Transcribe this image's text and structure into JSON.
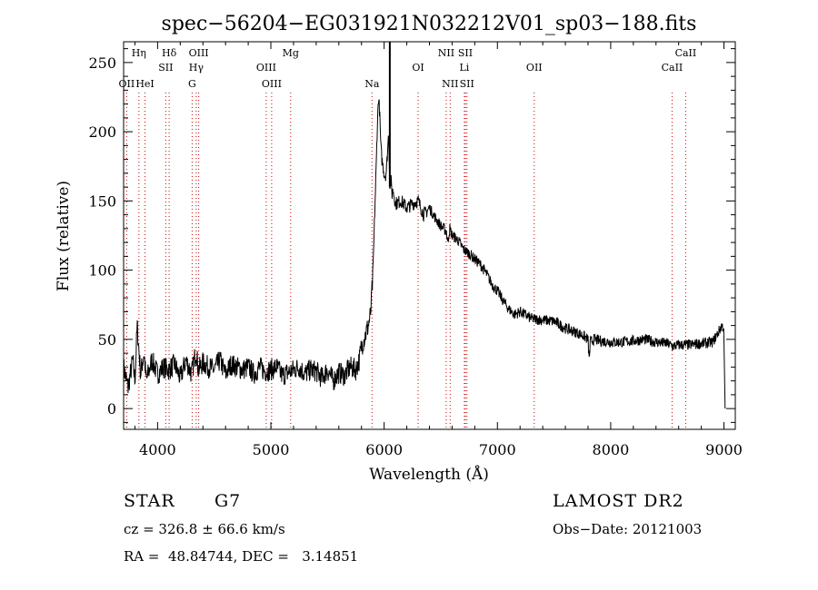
{
  "chart_data": {
    "type": "line",
    "title": "spec−56204−EG031921N032212V01_sp03−188.fits",
    "xlabel": "Wavelength (Å)",
    "ylabel": "Flux (relative)",
    "xlim": [
      3700,
      9100
    ],
    "ylim": [
      -15,
      265
    ],
    "xticks": [
      4000,
      5000,
      6000,
      7000,
      8000,
      9000
    ],
    "yticks": [
      0,
      50,
      100,
      150,
      200,
      250
    ],
    "grid": false,
    "series": [
      {
        "x": [
          3700,
          3740,
          3780,
          3800,
          3820,
          3850,
          3880,
          3900,
          3950,
          4000,
          4050,
          4100,
          4150,
          4200,
          4250,
          4300,
          4340,
          4360,
          4400,
          4450,
          4500,
          4550,
          4600,
          4650,
          4700,
          4750,
          4800,
          4850,
          4900,
          4950,
          5000,
          5050,
          5100,
          5150,
          5200,
          5250,
          5300,
          5350,
          5400,
          5450,
          5500,
          5550,
          5600,
          5650,
          5700,
          5750,
          5780,
          5800,
          5830,
          5860,
          5880,
          5900,
          5920,
          5930,
          5940,
          5950,
          5960,
          5970,
          5980,
          5990,
          6000,
          6010,
          6020,
          6040,
          6050,
          6060,
          6070,
          6080,
          6100,
          6150,
          6200,
          6250,
          6300,
          6350,
          6400,
          6450,
          6500,
          6550,
          6560,
          6580,
          6600,
          6650,
          6700,
          6750,
          6800,
          6850,
          6900,
          6950,
          7000,
          7050,
          7100,
          7150,
          7200,
          7300,
          7400,
          7500,
          7600,
          7700,
          7750,
          7800,
          7810,
          7820,
          7850,
          7900,
          8000,
          8100,
          8200,
          8300,
          8400,
          8500,
          8550,
          8600,
          8700,
          8800,
          8900,
          8950,
          8980,
          9000,
          9010
        ],
        "values": [
          30,
          15,
          35,
          20,
          60,
          25,
          40,
          20,
          35,
          25,
          30,
          28,
          32,
          22,
          35,
          25,
          42,
          28,
          33,
          30,
          28,
          35,
          25,
          32,
          30,
          28,
          30,
          25,
          30,
          27,
          28,
          30,
          24,
          26,
          28,
          30,
          25,
          28,
          27,
          22,
          28,
          20,
          26,
          24,
          30,
          28,
          35,
          45,
          52,
          60,
          68,
          95,
          150,
          175,
          205,
          225,
          215,
          190,
          180,
          175,
          170,
          168,
          172,
          200,
          160,
          165,
          155,
          158,
          148,
          150,
          145,
          148,
          150,
          140,
          145,
          138,
          132,
          128,
          120,
          130,
          125,
          122,
          115,
          112,
          108,
          104,
          98,
          90,
          85,
          78,
          72,
          68,
          70,
          65,
          64,
          63,
          58,
          55,
          53,
          50,
          35,
          48,
          50,
          49,
          48,
          48,
          49,
          50,
          48,
          47,
          45,
          46,
          46,
          47,
          48,
          55,
          60,
          58,
          0
        ],
        "spike": {
          "x": 6050,
          "value": 265
        }
      }
    ],
    "line_markers": [
      {
        "label": "OII",
        "x": 3727,
        "row": 3
      },
      {
        "label": "Hη",
        "x": 3835,
        "row": 1
      },
      {
        "label": "HeI",
        "x": 3889,
        "row": 3
      },
      {
        "label": "Hδ",
        "x": 4102,
        "row": 1
      },
      {
        "label": "SII",
        "x": 4072,
        "row": 2
      },
      {
        "label": "OIII",
        "x": 4363,
        "row": 1
      },
      {
        "label": "Hγ",
        "x": 4341,
        "row": 2
      },
      {
        "label": "G",
        "x": 4305,
        "row": 3
      },
      {
        "label": "OIII",
        "x": 4959,
        "row": 2
      },
      {
        "label": "OIII",
        "x": 5007,
        "row": 3
      },
      {
        "label": "Mg",
        "x": 5175,
        "row": 1
      },
      {
        "label": "Na",
        "x": 5893,
        "row": 3
      },
      {
        "label": "OI",
        "x": 6300,
        "row": 2
      },
      {
        "label": "NII",
        "x": 6548,
        "row": 1
      },
      {
        "label": "NII",
        "x": 6583,
        "row": 3
      },
      {
        "label": "SII",
        "x": 6717,
        "row": 1
      },
      {
        "label": "Li",
        "x": 6708,
        "row": 2
      },
      {
        "label": "SII",
        "x": 6731,
        "row": 3
      },
      {
        "label": "OII",
        "x": 7325,
        "row": 2
      },
      {
        "label": "CaII",
        "x": 8542,
        "row": 2
      },
      {
        "label": "CaII",
        "x": 8662,
        "row": 1
      }
    ]
  },
  "info": {
    "obj_class": "STAR",
    "subclass": "G7",
    "survey": "LAMOST DR2",
    "cz": "cz = 326.8 ± 66.6 km/s",
    "obs_date": "Obs−Date: 20121003",
    "coords": "RA =  48.84744, DEC =   3.14851"
  }
}
